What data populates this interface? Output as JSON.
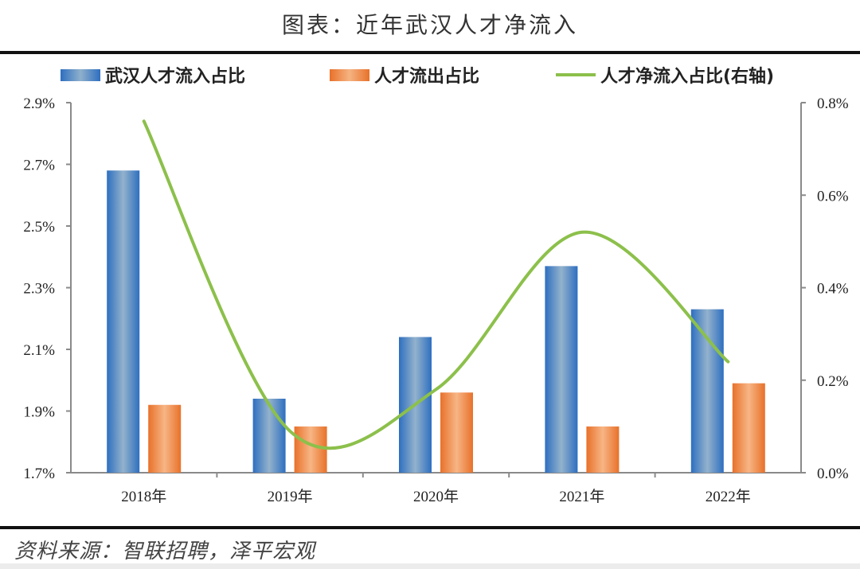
{
  "title": "图表：近年武汉人才净流入",
  "legend": {
    "inflow": "武汉人才流入占比",
    "outflow": "人才流出占比",
    "net": "人才净流入占比(右轴)"
  },
  "source": "资料来源：智联招聘，泽平宏观",
  "colors": {
    "inflow": "#2e6fc0",
    "outflow": "#e8712a",
    "net": "#8cc04b"
  },
  "chart_data": {
    "type": "bar",
    "title": "图表：近年武汉人才净流入",
    "categories": [
      "2018年",
      "2019年",
      "2020年",
      "2021年",
      "2022年"
    ],
    "series": [
      {
        "name": "武汉人才流入占比",
        "type": "bar",
        "axis": "left",
        "values": [
          2.68,
          1.94,
          2.14,
          2.37,
          2.23
        ]
      },
      {
        "name": "人才流出占比",
        "type": "bar",
        "axis": "left",
        "values": [
          1.92,
          1.85,
          1.96,
          1.85,
          1.99
        ]
      },
      {
        "name": "人才净流入占比(右轴)",
        "type": "line",
        "axis": "right",
        "values": [
          0.76,
          0.09,
          0.18,
          0.52,
          0.24
        ]
      }
    ],
    "left_axis": {
      "ylim": [
        1.7,
        2.9
      ],
      "ticks": [
        "1.7%",
        "1.9%",
        "2.1%",
        "2.3%",
        "2.5%",
        "2.7%",
        "2.9%"
      ]
    },
    "right_axis": {
      "ylim": [
        0.0,
        0.8
      ],
      "ticks": [
        "0.0%",
        "0.2%",
        "0.4%",
        "0.6%",
        "0.8%"
      ]
    },
    "xlabel": "",
    "ylabel": "",
    "grid": false,
    "legend_position": "top"
  }
}
